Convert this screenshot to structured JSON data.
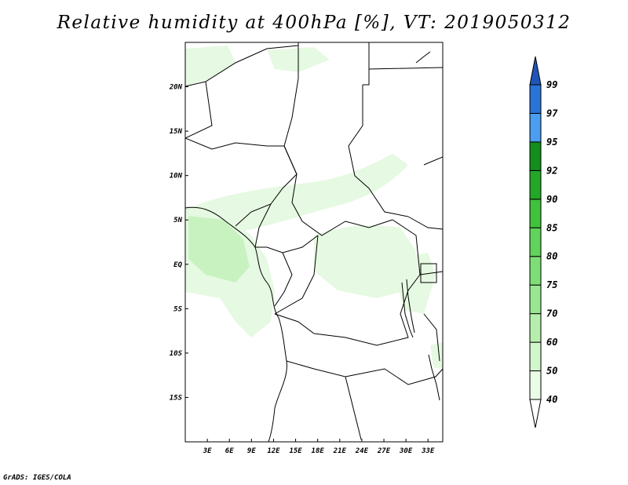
{
  "title": "Relative humidity at 400hPa [%], VT: 2019050312",
  "credit": "GrADS: IGES/COLA",
  "map": {
    "lon_range": [
      0,
      35
    ],
    "lat_range": [
      -20,
      25
    ],
    "lat_ticks": [
      {
        "value": 20,
        "label": "20N"
      },
      {
        "value": 15,
        "label": "15N"
      },
      {
        "value": 10,
        "label": "10N"
      },
      {
        "value": 5,
        "label": "5N"
      },
      {
        "value": 0,
        "label": "EQ"
      },
      {
        "value": -5,
        "label": "5S"
      },
      {
        "value": -10,
        "label": "10S"
      },
      {
        "value": -15,
        "label": "15S"
      }
    ],
    "lon_ticks": [
      {
        "value": 3,
        "label": "3E"
      },
      {
        "value": 6,
        "label": "6E"
      },
      {
        "value": 9,
        "label": "9E"
      },
      {
        "value": 12,
        "label": "12E"
      },
      {
        "value": 15,
        "label": "15E"
      },
      {
        "value": 18,
        "label": "18E"
      },
      {
        "value": 21,
        "label": "21E"
      },
      {
        "value": 24,
        "label": "24E"
      },
      {
        "value": 27,
        "label": "27E"
      },
      {
        "value": 30,
        "label": "30E"
      },
      {
        "value": 33,
        "label": "33E"
      }
    ]
  },
  "colorbar": {
    "levels": [
      "40",
      "50",
      "60",
      "70",
      "75",
      "80",
      "85",
      "90",
      "92",
      "95",
      "97",
      "99"
    ],
    "colors": [
      "#ffffff",
      "#eafbe6",
      "#d2f6cc",
      "#b6efad",
      "#9ae792",
      "#7ede76",
      "#5fd35a",
      "#3fc23c",
      "#23a726",
      "#138e1a",
      "#4a9df0",
      "#2a74d8",
      "#1f55b8"
    ]
  },
  "humid_color_light": "#e6f9e2",
  "humid_color_mid": "#c9f2c1"
}
